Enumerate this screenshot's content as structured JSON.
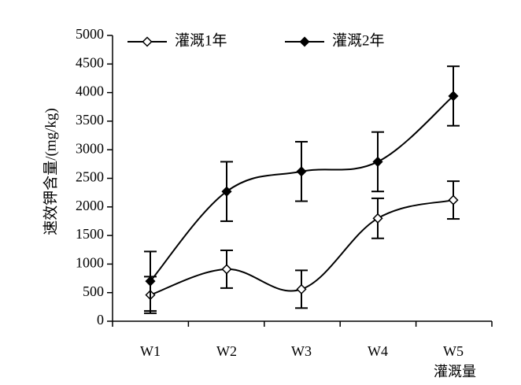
{
  "chart_data": {
    "type": "line",
    "title": "",
    "ylabel": "速效钾含量/(mg/kg)",
    "xlabel": "灌溉量",
    "categories": [
      "W1",
      "W2",
      "W3",
      "W4",
      "W5"
    ],
    "ylim": [
      0,
      5000
    ],
    "yticks": [
      0,
      500,
      1000,
      1500,
      2000,
      2500,
      3000,
      3500,
      4000,
      4500,
      5000
    ],
    "grid": false,
    "legend_position": "top",
    "smooth": true,
    "series": [
      {
        "name": "灌溉1年",
        "marker": "open-diamond",
        "color": "#000000",
        "values": [
          460,
          910,
          560,
          1800,
          2120
        ],
        "error": [
          320,
          330,
          330,
          350,
          330
        ]
      },
      {
        "name": "灌溉2年",
        "marker": "filled-diamond",
        "color": "#000000",
        "values": [
          700,
          2270,
          2620,
          2790,
          3940
        ],
        "error": [
          520,
          520,
          520,
          520,
          520
        ]
      }
    ]
  }
}
